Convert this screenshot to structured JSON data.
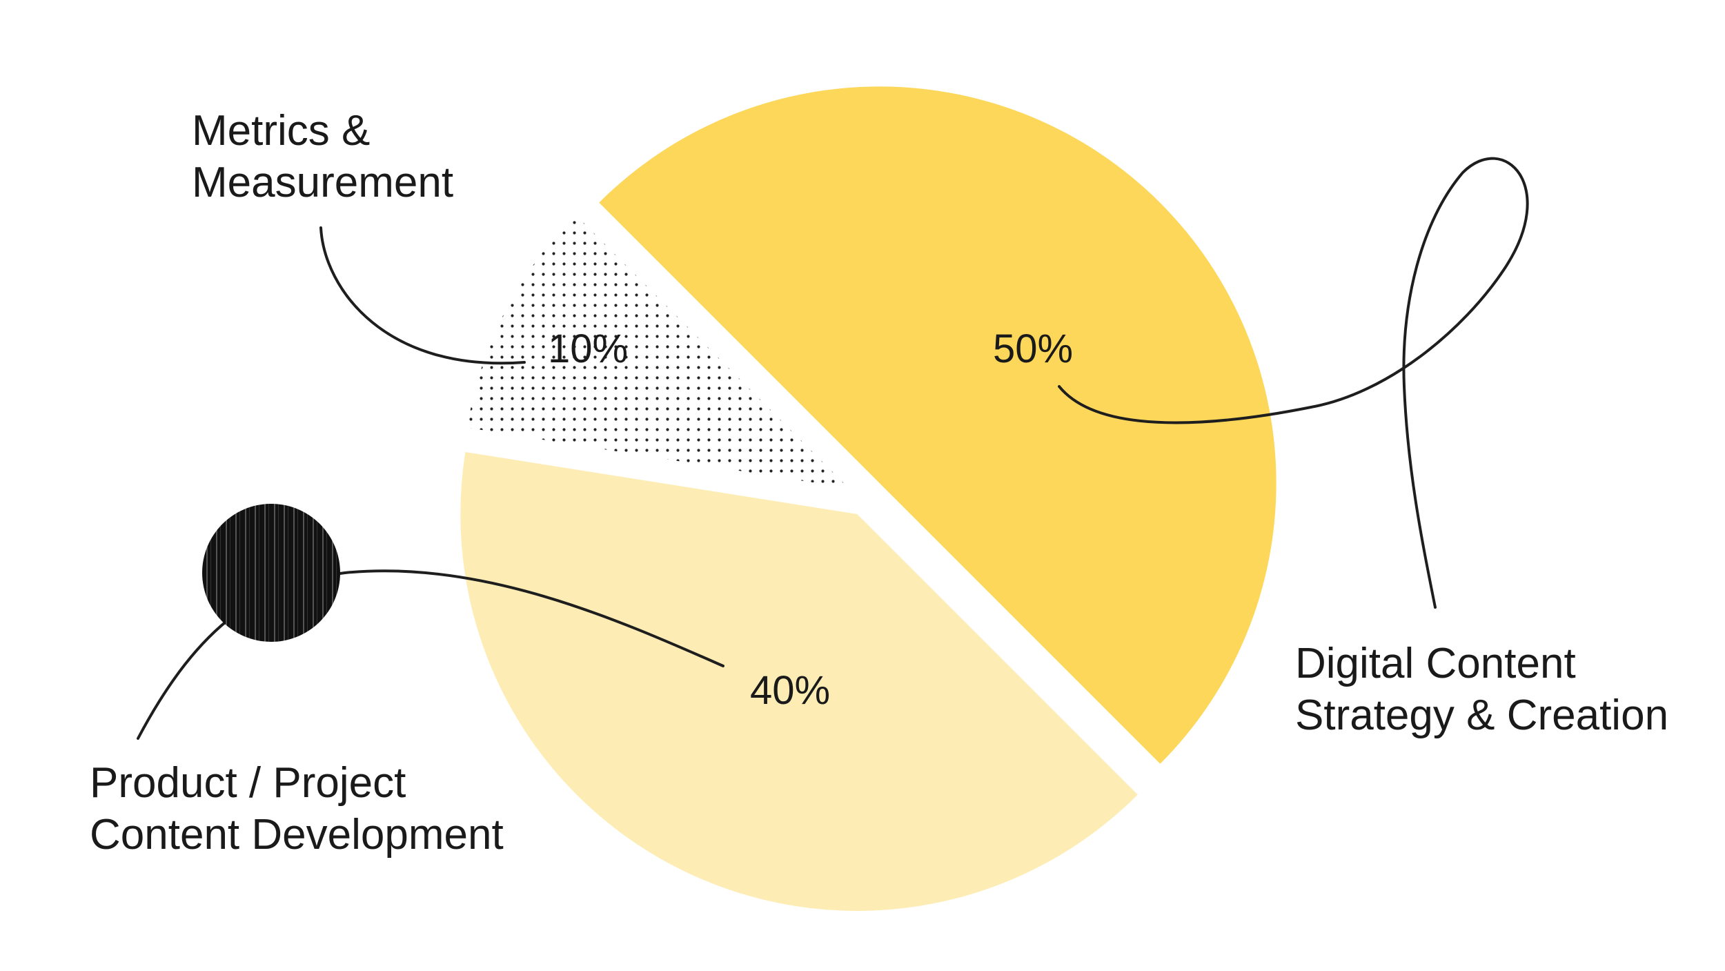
{
  "chart_data": {
    "type": "pie",
    "title": "",
    "slices": [
      {
        "label_lines": [
          "Digital Content",
          "Strategy & Creation"
        ],
        "value": 50,
        "value_label": "50%",
        "color": "#FDD75A"
      },
      {
        "label_lines": [
          "Product / Project",
          "Content Development"
        ],
        "value": 40,
        "value_label": "40%",
        "color": "#FDEDB5"
      },
      {
        "label_lines": [
          "Metrics &",
          "Measurement"
        ],
        "value": 10,
        "value_label": "10%",
        "color": "dotted-black"
      }
    ],
    "legend": "none",
    "exploded": true
  }
}
